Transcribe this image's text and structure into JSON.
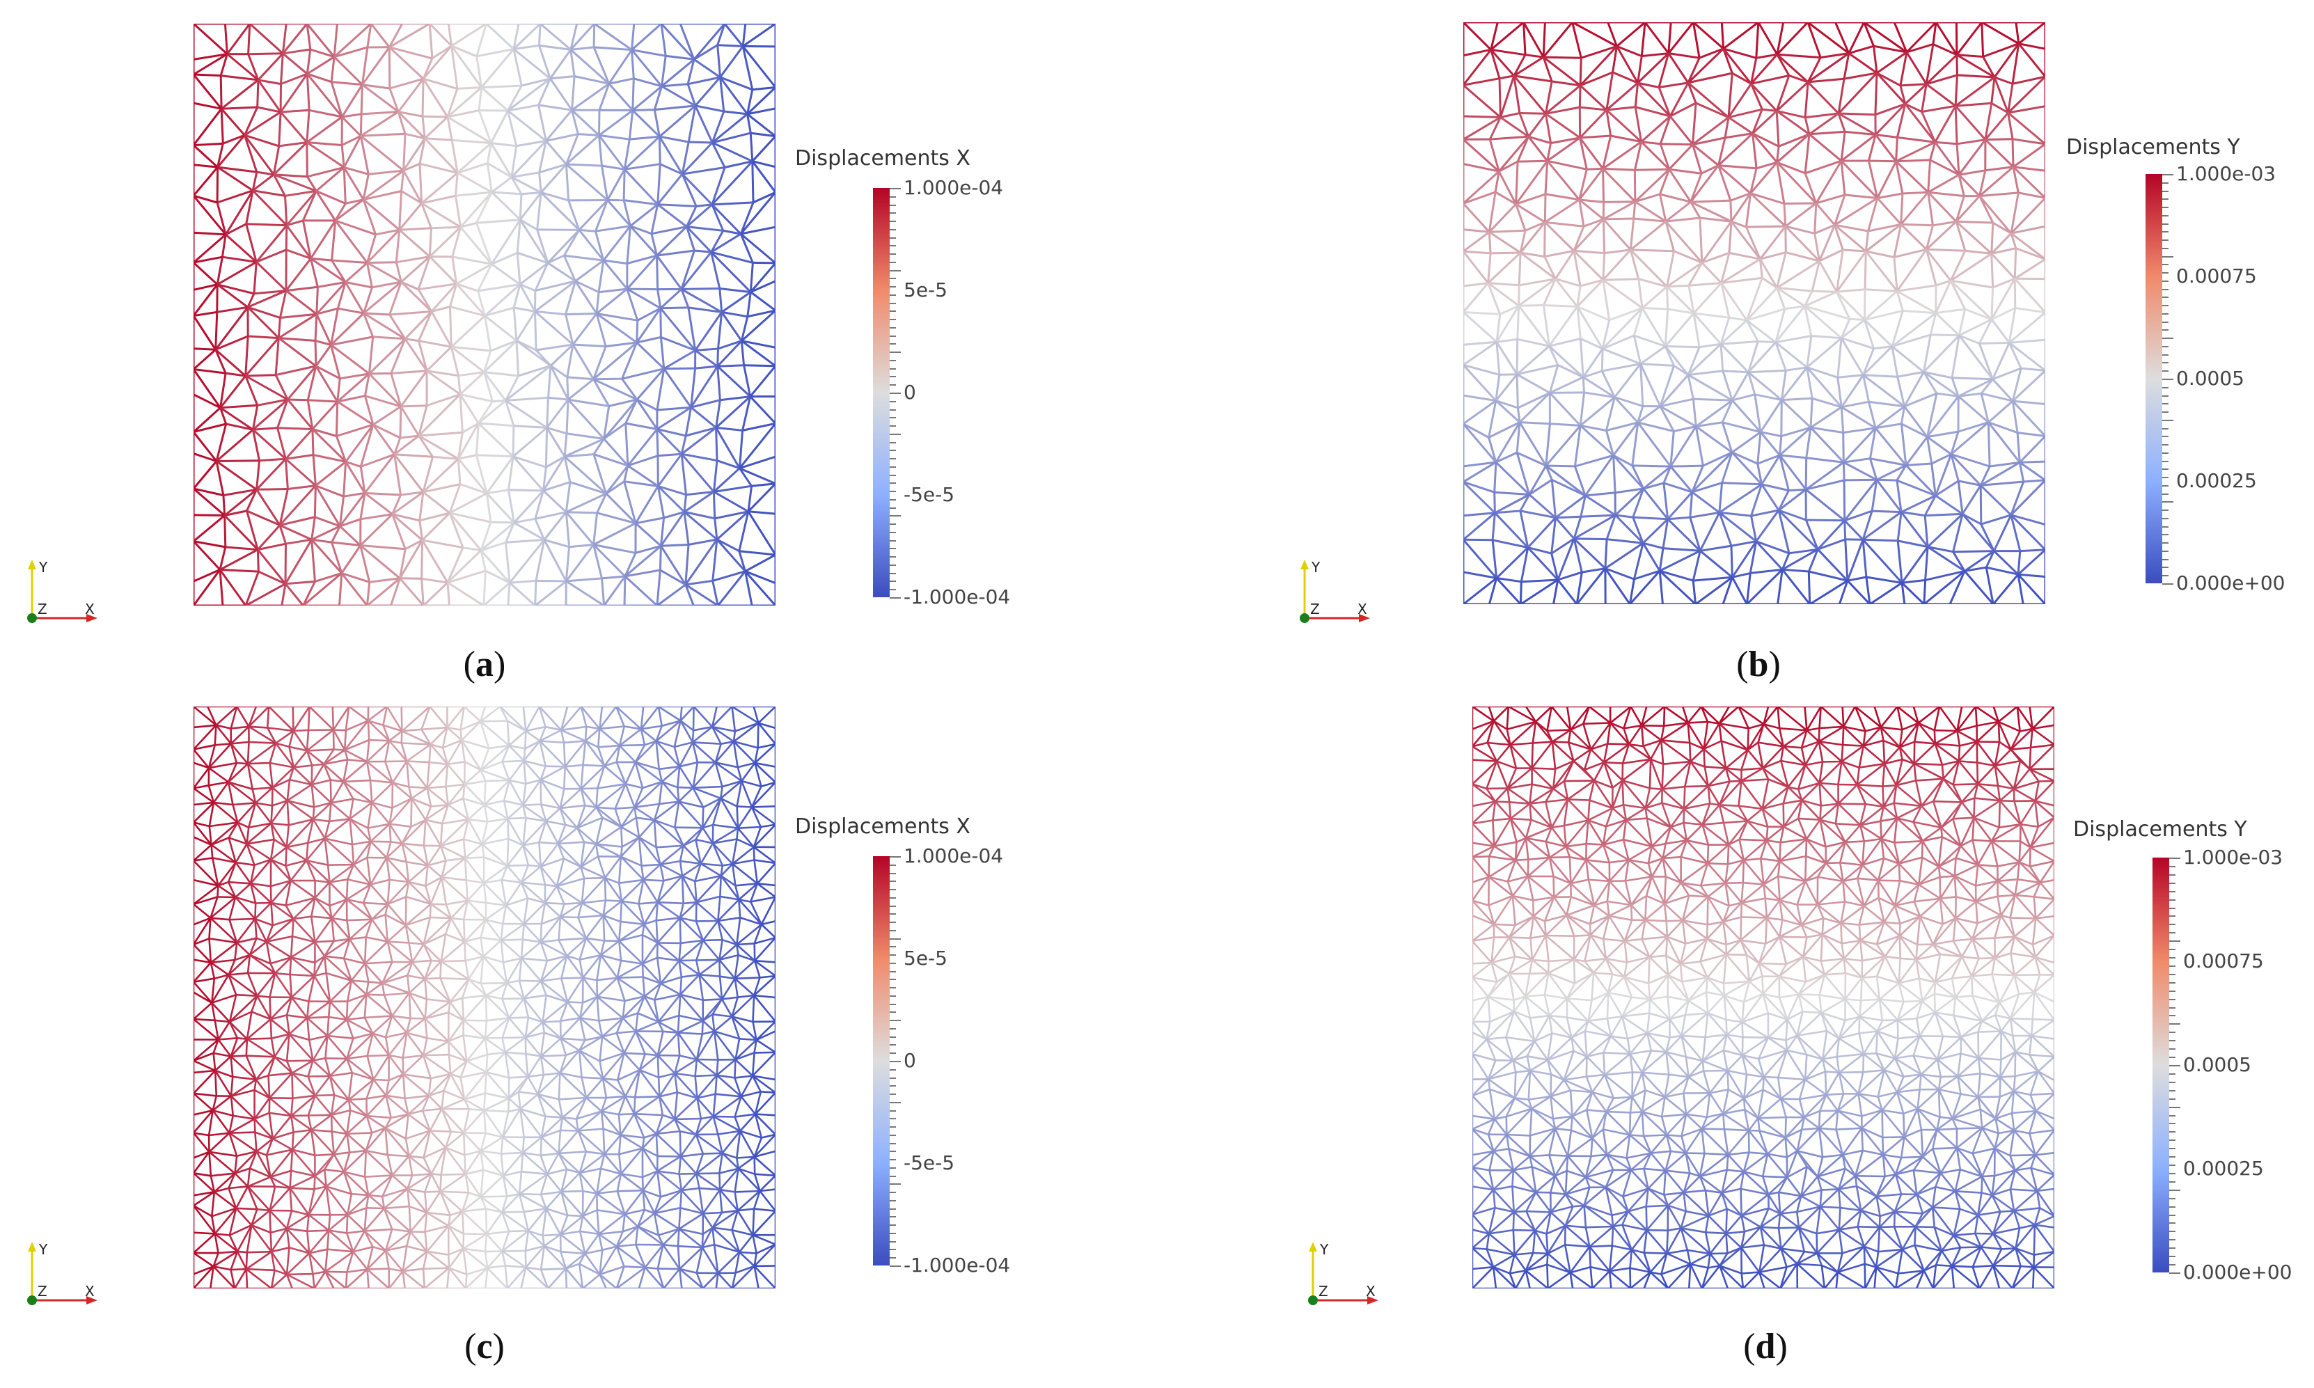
{
  "panels": [
    {
      "id": "a",
      "caption_letter": "a",
      "direction": "x",
      "density": "coarse",
      "colorbar": {
        "title": "Displacements X",
        "labels": [
          "1.000e-04",
          "5e-5",
          "0",
          "-5e-5",
          "-1.000e-04"
        ]
      }
    },
    {
      "id": "b",
      "caption_letter": "b",
      "direction": "y",
      "density": "coarse",
      "colorbar": {
        "title": "Displacements Y",
        "labels": [
          "1.000e-03",
          "0.00075",
          "0.0005",
          "0.00025",
          "0.000e+00"
        ]
      }
    },
    {
      "id": "c",
      "caption_letter": "c",
      "direction": "x",
      "density": "fine",
      "colorbar": {
        "title": "Displacements X",
        "labels": [
          "1.000e-04",
          "5e-5",
          "0",
          "-5e-5",
          "-1.000e-04"
        ]
      }
    },
    {
      "id": "d",
      "caption_letter": "d",
      "direction": "y",
      "density": "fine",
      "colorbar": {
        "title": "Displacements Y",
        "labels": [
          "1.000e-03",
          "0.00075",
          "0.0005",
          "0.00025",
          "0.000e+00"
        ]
      }
    }
  ],
  "axes_labels": {
    "x": "X",
    "y": "Y",
    "z": "Z"
  },
  "colors": {
    "high": "#b40426",
    "mid": "#dddddd",
    "low": "#3b4cc0",
    "x_axis": "#d62728",
    "y_axis": "#e0d000",
    "z_origin": "#1a7f1a"
  }
}
